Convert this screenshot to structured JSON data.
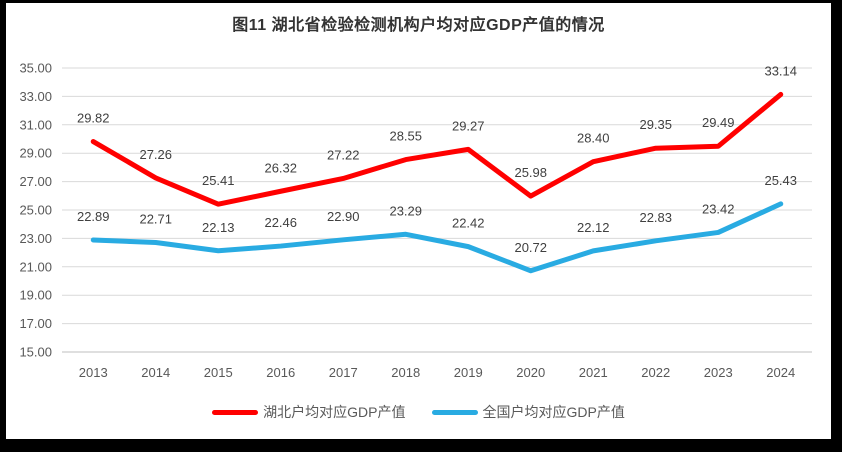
{
  "frame": {
    "border_color": "#000000",
    "background": "#ffffff"
  },
  "title": "图11  湖北省检验检测机构户均对应GDP产值的情况",
  "chart_data": {
    "type": "line",
    "title": "图11  湖北省检验检测机构户均对应GDP产值的情况",
    "categories": [
      "2013",
      "2014",
      "2015",
      "2016",
      "2017",
      "2018",
      "2019",
      "2020",
      "2021",
      "2022",
      "2023",
      "2024"
    ],
    "series": [
      {
        "name": "湖北户均对应GDP产值",
        "color": "#FF0000",
        "values": [
          29.82,
          27.26,
          25.41,
          26.32,
          27.22,
          28.55,
          29.27,
          25.98,
          28.4,
          29.35,
          29.49,
          33.14
        ]
      },
      {
        "name": "全国户均对应GDP产值",
        "color": "#29ABE2",
        "values": [
          22.89,
          22.71,
          22.13,
          22.46,
          22.9,
          23.29,
          22.42,
          20.72,
          22.12,
          22.83,
          23.42,
          25.43
        ]
      }
    ],
    "xlabel": "",
    "ylabel": "",
    "ylim": [
      15,
      35
    ],
    "ytick_step": 2,
    "ytick_format": "0.00",
    "grid": true,
    "data_labels": true,
    "legend_position": "bottom",
    "style": {
      "grid_color": "#D9D9D9",
      "axis_line_color": "#BFBFBF",
      "tick_text_color": "#595959",
      "data_label_color": "#404040",
      "line_width": 5
    }
  }
}
